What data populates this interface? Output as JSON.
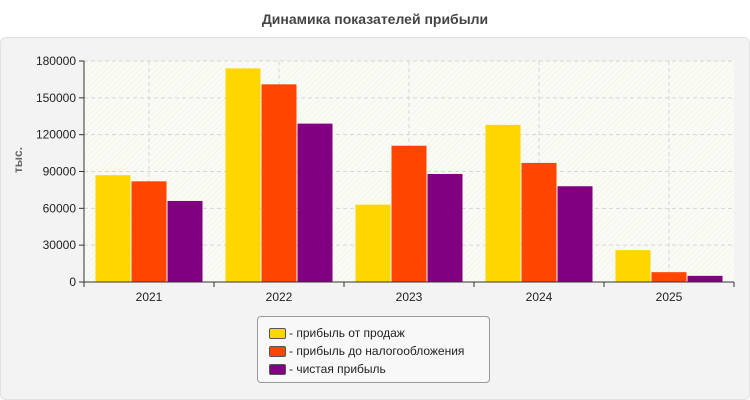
{
  "chart_data": {
    "type": "bar",
    "title": "Динамика показателей прибыли",
    "ylabel": "тыс.",
    "xlabel": "",
    "categories": [
      "2021",
      "2022",
      "2023",
      "2024",
      "2025"
    ],
    "series": [
      {
        "name": "- прибыль от продаж",
        "color": "#ffd700",
        "values": [
          87000,
          174000,
          63000,
          128000,
          26000
        ]
      },
      {
        "name": "- прибыль до налогообложения",
        "color": "#ff4500",
        "values": [
          82000,
          161000,
          111000,
          97000,
          8000
        ]
      },
      {
        "name": "- чистая прибыль",
        "color": "#800080",
        "values": [
          66000,
          129000,
          88000,
          78000,
          5000
        ]
      }
    ],
    "ylim": [
      0,
      180000
    ],
    "yticks": [
      "0",
      "30000",
      "60000",
      "90000",
      "120000",
      "150000",
      "180000"
    ],
    "grid": true,
    "legend_position": "bottom"
  }
}
